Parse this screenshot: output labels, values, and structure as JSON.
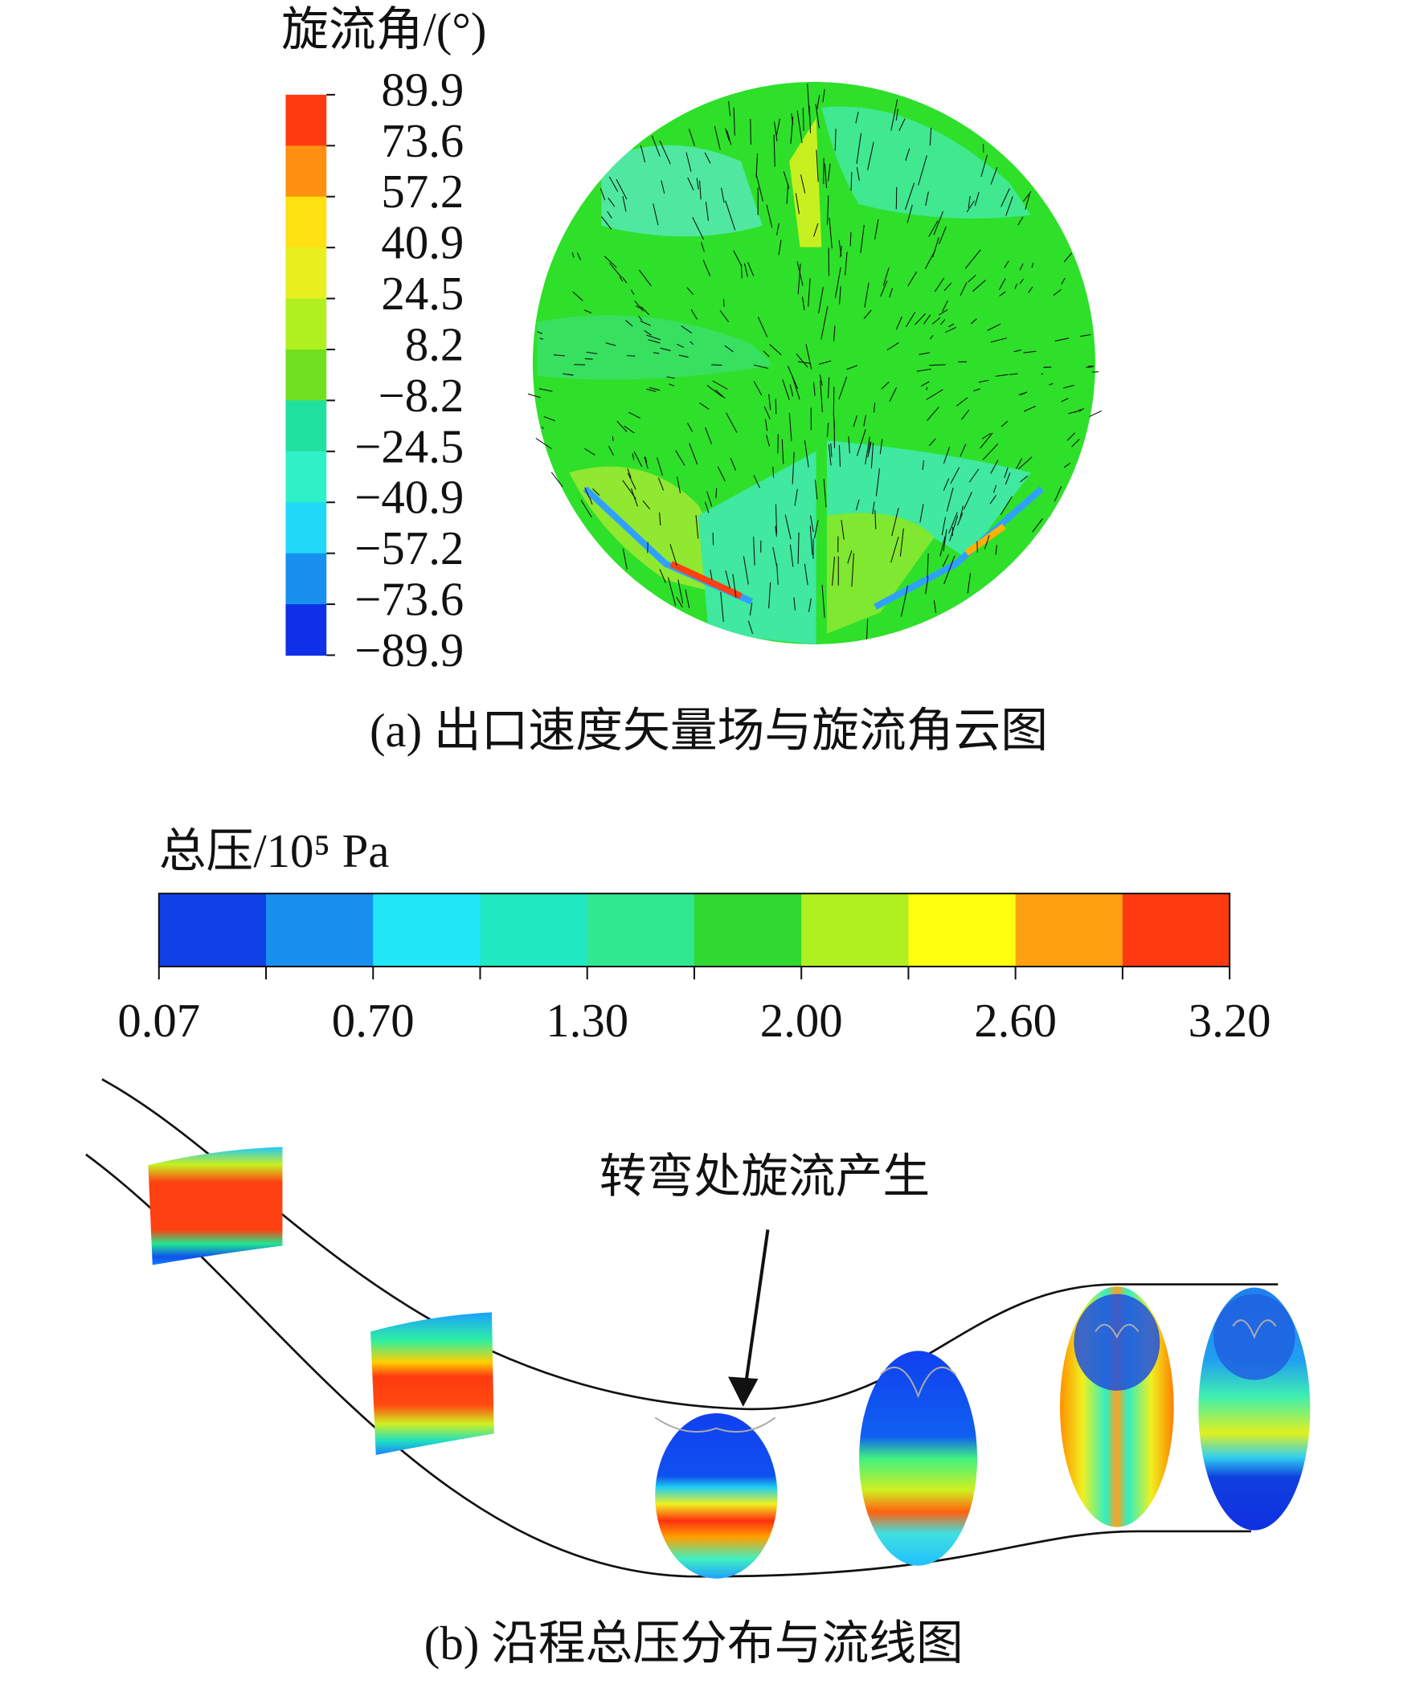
{
  "panel_a": {
    "legend_title": "旋流角/(°)",
    "legend_labels": [
      "89.9",
      "73.6",
      "57.2",
      "40.9",
      "24.5",
      "8.2",
      "−8.2",
      "−24.5",
      "−40.9",
      "−57.2",
      "−73.6",
      "−89.9"
    ],
    "caption": "(a) 出口速度矢量场与旋流角云图"
  },
  "panel_b": {
    "legend_title": "总压/10⁵ Pa",
    "legend_labels": [
      "0.07",
      "0.70",
      "1.30",
      "2.00",
      "2.60",
      "3.20"
    ],
    "annotation": "转弯处旋流产生",
    "caption": "(b) 沿程总压分布与流线图"
  }
}
